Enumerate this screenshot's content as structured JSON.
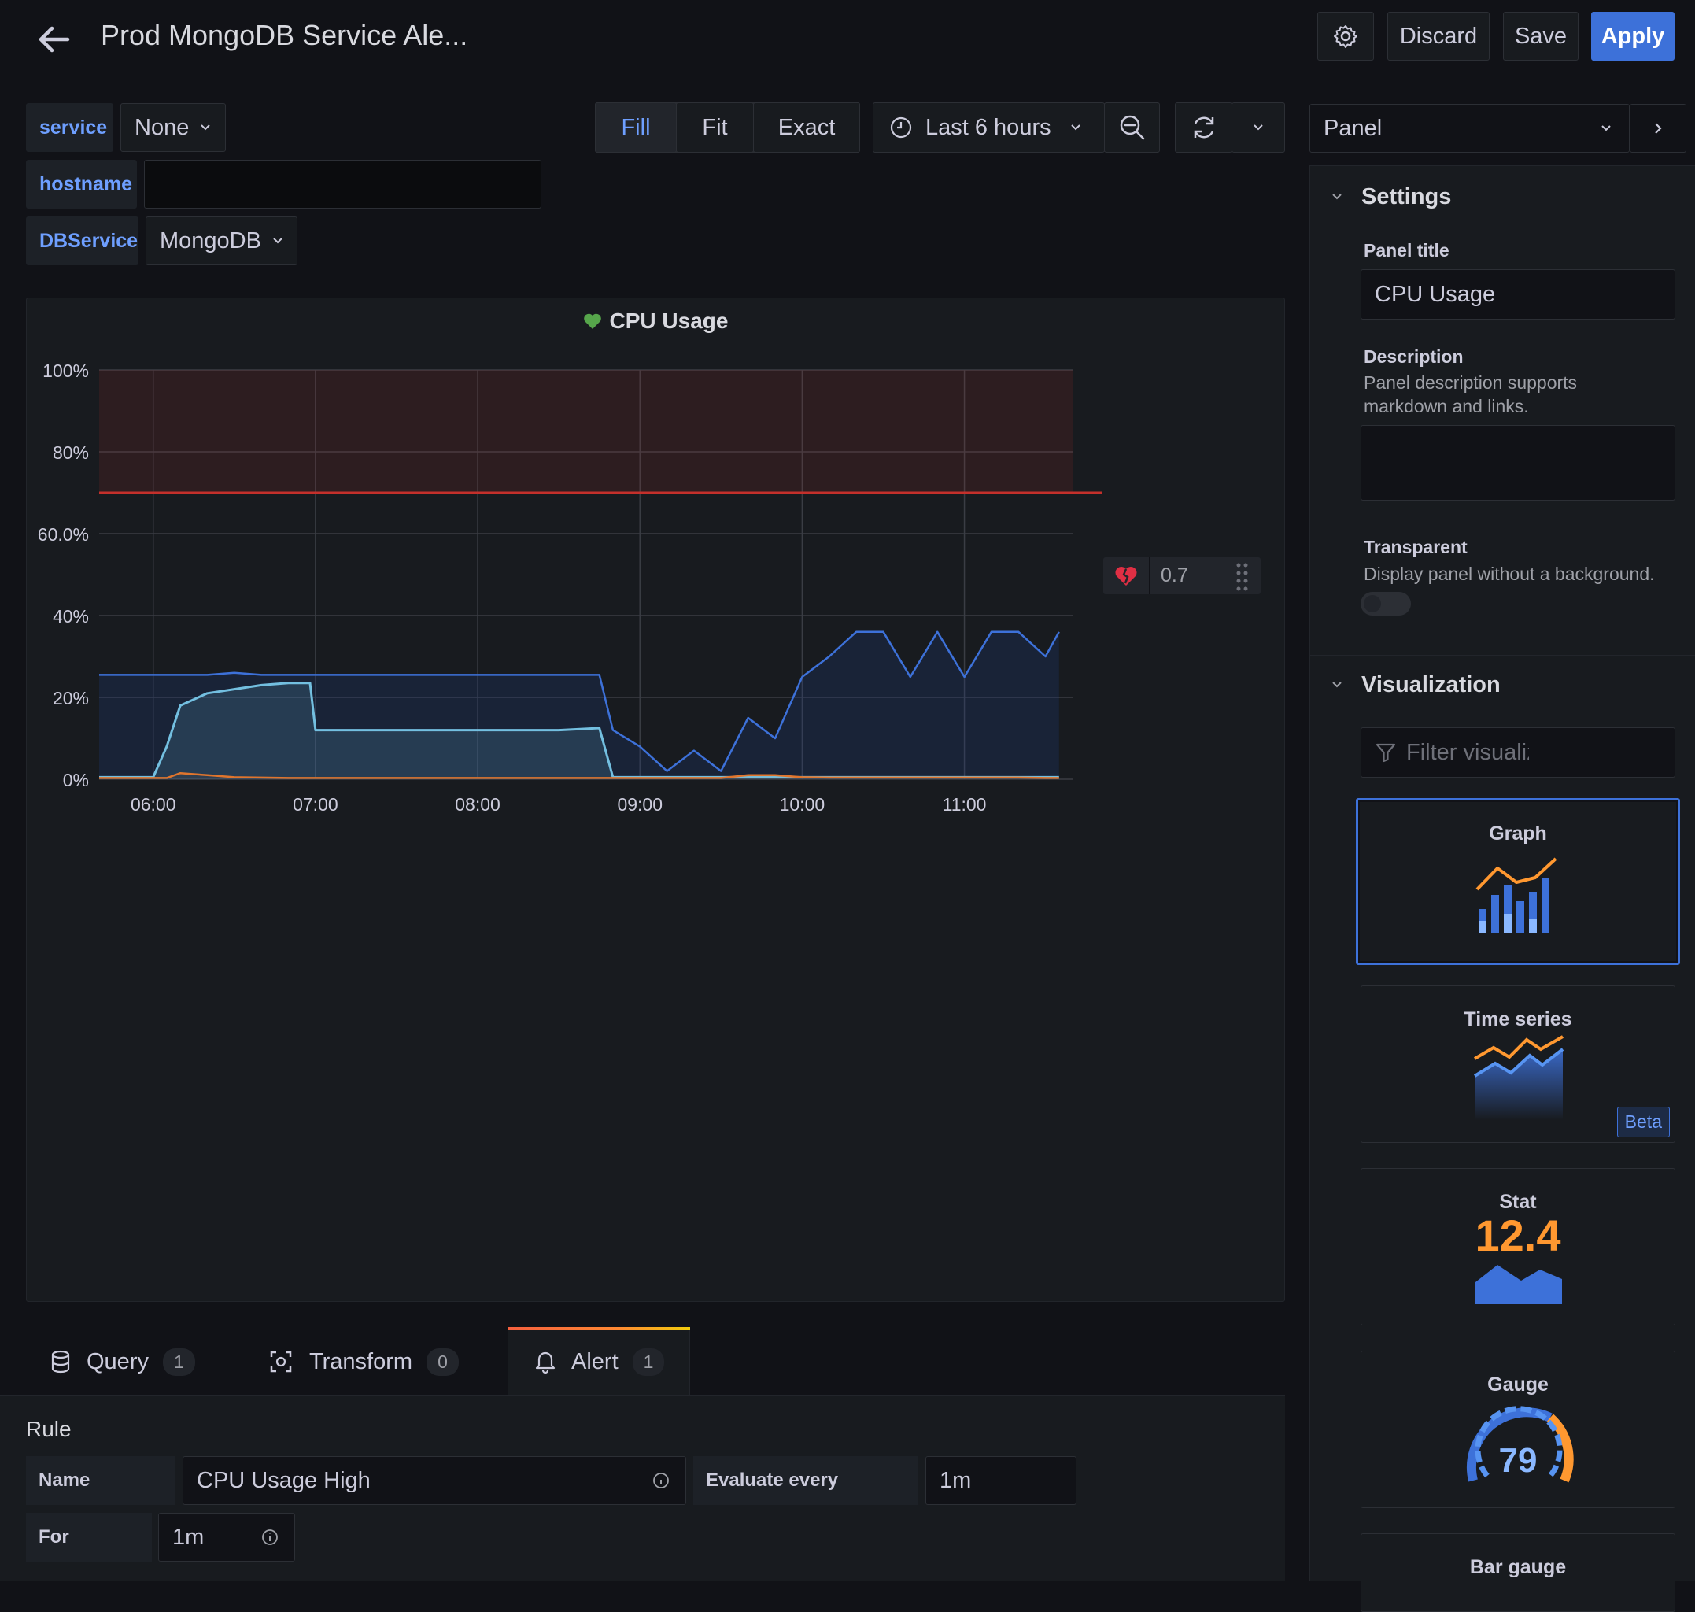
{
  "header": {
    "title": "Prod MongoDB Service Ale...",
    "discard_label": "Discard",
    "save_label": "Save",
    "apply_label": "Apply"
  },
  "variables": [
    {
      "label": "service",
      "value": "None"
    },
    {
      "label": "hostname",
      "value": ""
    },
    {
      "label": "DBService",
      "value": "MongoDB"
    }
  ],
  "toolbar": {
    "fill_label": "Fill",
    "fit_label": "Fit",
    "exact_label": "Exact",
    "time_range": "Last 6 hours"
  },
  "panel": {
    "title": "CPU Usage",
    "threshold_value": "0.7",
    "colors": {
      "threshold": "#c4302b",
      "series_cpu": "#73bfe0",
      "series_blue": "#3d71d9",
      "health": "#56a64b"
    }
  },
  "chart_data": {
    "type": "area",
    "title": "CPU Usage",
    "x_ticks": [
      "06:00",
      "07:00",
      "08:00",
      "09:00",
      "10:00",
      "11:00"
    ],
    "y_ticks": [
      "0%",
      "20%",
      "40%",
      "60.0%",
      "80%",
      "100%"
    ],
    "ylim": [
      0,
      100
    ],
    "grid": true,
    "threshold": 70,
    "x": [
      "05:40",
      "06:00",
      "06:05",
      "06:10",
      "06:20",
      "06:30",
      "06:40",
      "06:50",
      "06:58",
      "07:00",
      "07:30",
      "08:00",
      "08:30",
      "08:45",
      "08:50",
      "09:00",
      "09:10",
      "09:20",
      "09:30",
      "09:40",
      "09:50",
      "10:00",
      "10:10",
      "10:20",
      "10:30",
      "10:40",
      "10:50",
      "11:00",
      "11:10",
      "11:20",
      "11:30",
      "11:35"
    ],
    "series": [
      {
        "values": [
          0.5,
          0.5,
          8,
          18,
          21,
          22,
          23,
          23.5,
          23.5,
          12,
          12,
          12,
          12,
          12.5,
          0.5,
          0.5,
          0.5,
          0.5,
          0.5,
          0.5,
          0.5,
          0.5,
          0.5,
          0.5,
          0.5,
          0.5,
          0.5,
          0.5,
          0.5,
          0.5,
          0.5,
          0.5
        ]
      },
      {
        "values": [
          25.5,
          25.5,
          25.5,
          25.5,
          25.5,
          26,
          25.5,
          25.5,
          25.5,
          25.5,
          25.5,
          25.5,
          25.5,
          25.5,
          12,
          8,
          2,
          7,
          2,
          15,
          10,
          25,
          30,
          36,
          36,
          25,
          36,
          25,
          36,
          36,
          30,
          36
        ]
      },
      {
        "values": [
          0.3,
          0.3,
          0.3,
          1.5,
          1,
          0.5,
          0.4,
          0.3,
          0.3,
          0.3,
          0.3,
          0.3,
          0.3,
          0.3,
          0.3,
          0.3,
          0.3,
          0.3,
          0.3,
          1,
          1,
          0.5,
          0.4,
          0.4,
          0.4,
          0.4,
          0.4,
          0.4,
          0.4,
          0.4,
          0.3,
          0.3
        ]
      }
    ]
  },
  "editor_tabs": [
    {
      "label": "Query",
      "count": "1"
    },
    {
      "label": "Transform",
      "count": "0"
    },
    {
      "label": "Alert",
      "count": "1"
    }
  ],
  "rule": {
    "heading": "Rule",
    "name_label": "Name",
    "name_value": "CPU Usage High",
    "evaluate_label": "Evaluate every",
    "evaluate_value": "1m",
    "for_label": "For",
    "for_value": "1m"
  },
  "options_pane": {
    "selector": "Panel",
    "settings_heading": "Settings",
    "panel_title_label": "Panel title",
    "panel_title_value": "CPU Usage",
    "description_label": "Description",
    "description_help_1": "Panel description supports",
    "description_help_2": "markdown and links.",
    "transparent_label": "Transparent",
    "transparent_help": "Display panel without a background.",
    "transparent_on": false,
    "visualization_heading": "Visualization",
    "filter_placeholder": "Filter visualiz"
  },
  "visualizations": [
    {
      "name": "Graph",
      "selected": true
    },
    {
      "name": "Time series",
      "badge": "Beta"
    },
    {
      "name": "Stat",
      "value": "12.4"
    },
    {
      "name": "Gauge",
      "value": "79"
    },
    {
      "name": "Bar gauge"
    }
  ]
}
